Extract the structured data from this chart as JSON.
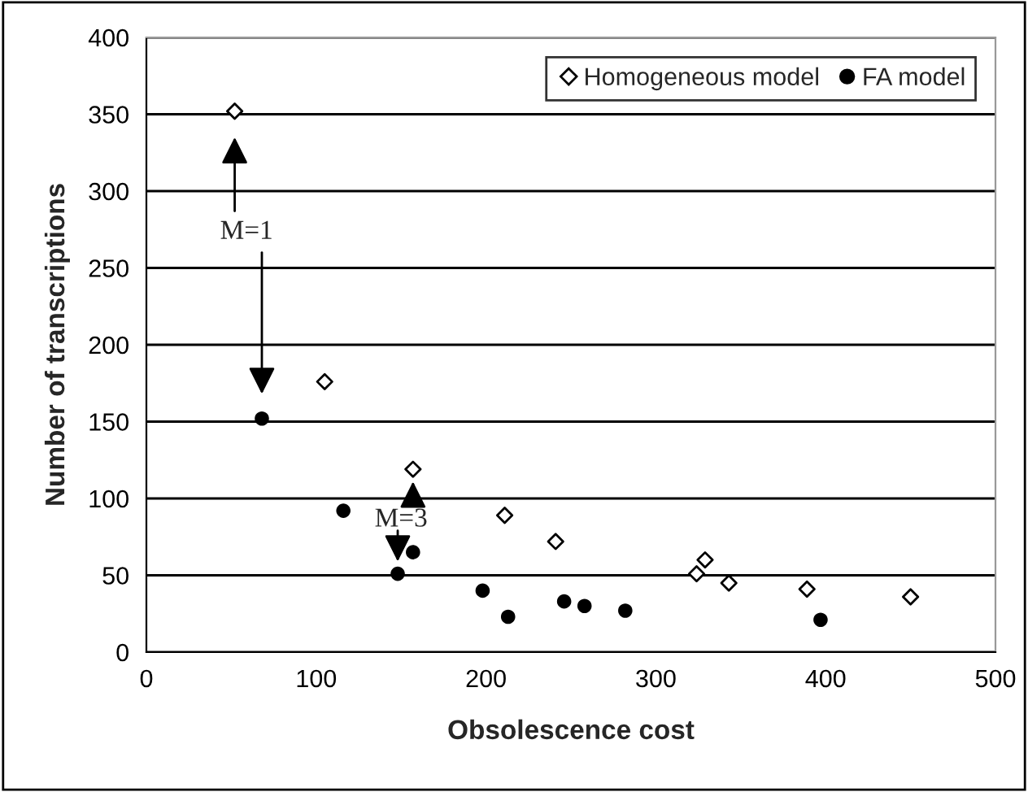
{
  "chart_data": {
    "type": "scatter",
    "xlabel": "Obsolescence cost",
    "ylabel": "Number of transcriptions",
    "series": [
      {
        "name": "Homogeneous model",
        "color": "#000000",
        "marker": "diamond",
        "x": [
          52,
          105,
          157,
          211,
          241,
          324,
          329,
          343,
          389,
          450
        ],
        "values": [
          352,
          176,
          119,
          89,
          72,
          51,
          60,
          45,
          41,
          36
        ]
      },
      {
        "name": "FA model",
        "color": "#000000",
        "marker": "circle",
        "x": [
          68,
          116,
          148,
          157,
          198,
          213,
          246,
          258,
          282,
          397
        ],
        "values": [
          152,
          92,
          51,
          65,
          40,
          23,
          33,
          30,
          27,
          21
        ]
      }
    ],
    "xlim": [
      0,
      500
    ],
    "xticks": [
      0,
      100,
      200,
      300,
      400,
      500
    ],
    "ylim": [
      0,
      400
    ],
    "yticks": [
      0,
      50,
      100,
      150,
      200,
      250,
      300,
      350,
      400
    ],
    "grid": "y",
    "legend": "top right",
    "annotations": [
      "M=1",
      "M=3"
    ]
  }
}
